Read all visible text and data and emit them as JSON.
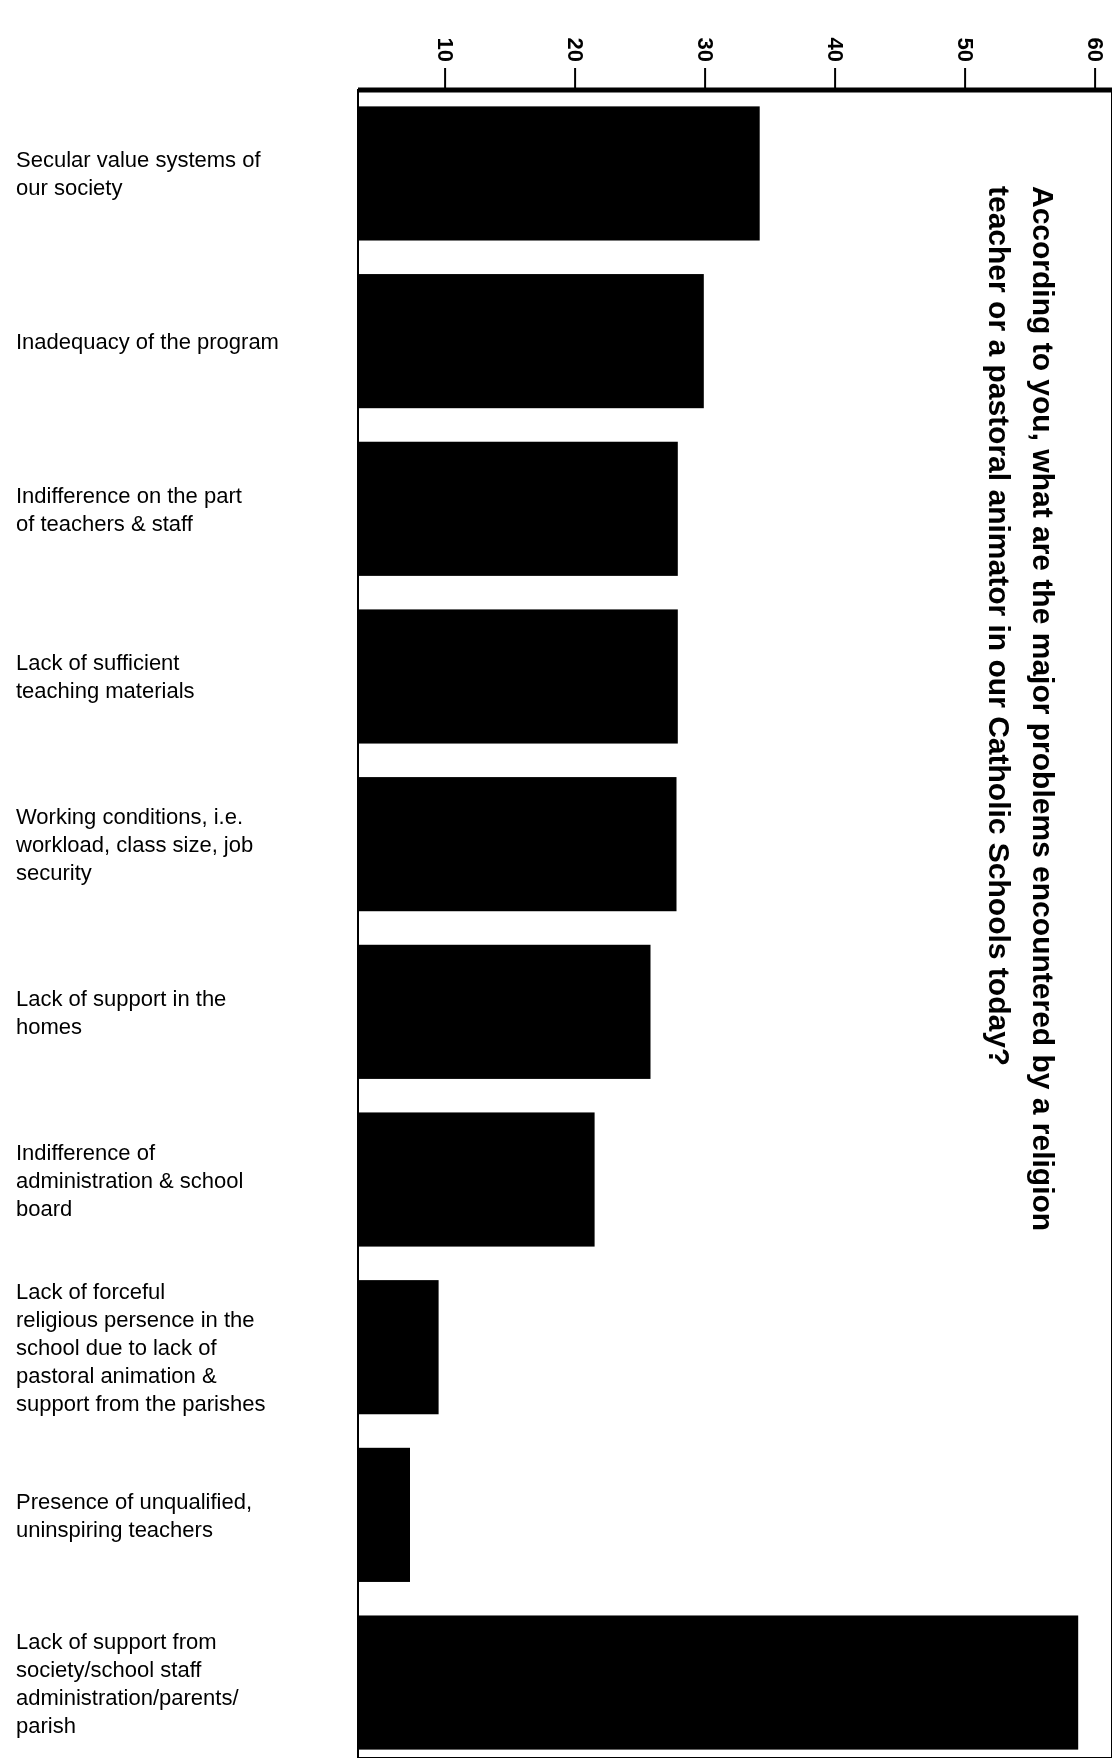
{
  "chart_data": {
    "type": "bar",
    "orientation": "horizontal",
    "title": "According to you, what are the major problems encountered by a religion teacher or a pastoral animator in our Catholic Schools today?",
    "categories": [
      "Secular value systems of our society",
      "Inadequacy of the program",
      "Indifference on the part of teachers & staff",
      "Lack of sufficient teaching materials",
      "Working conditions, i.e. workload, class size, job security",
      "Lack of support in the homes",
      "Indifference of administration & school board",
      "Lack of forceful religious persence in the school due to lack of pastoral animation & support from the parishes",
      "Presence of unqualified, uninspiring teachers",
      "Lack of support from society/school staff administration/parents/ parish"
    ],
    "values": [
      34.2,
      29.9,
      27.9,
      27.9,
      27.8,
      25.8,
      21.5,
      9.5,
      7.3,
      58.7
    ],
    "color": "#000000",
    "xlim": [
      3.3,
      61.3
    ],
    "xticks": [
      10,
      20,
      30,
      40,
      50,
      60
    ],
    "grid": false
  }
}
